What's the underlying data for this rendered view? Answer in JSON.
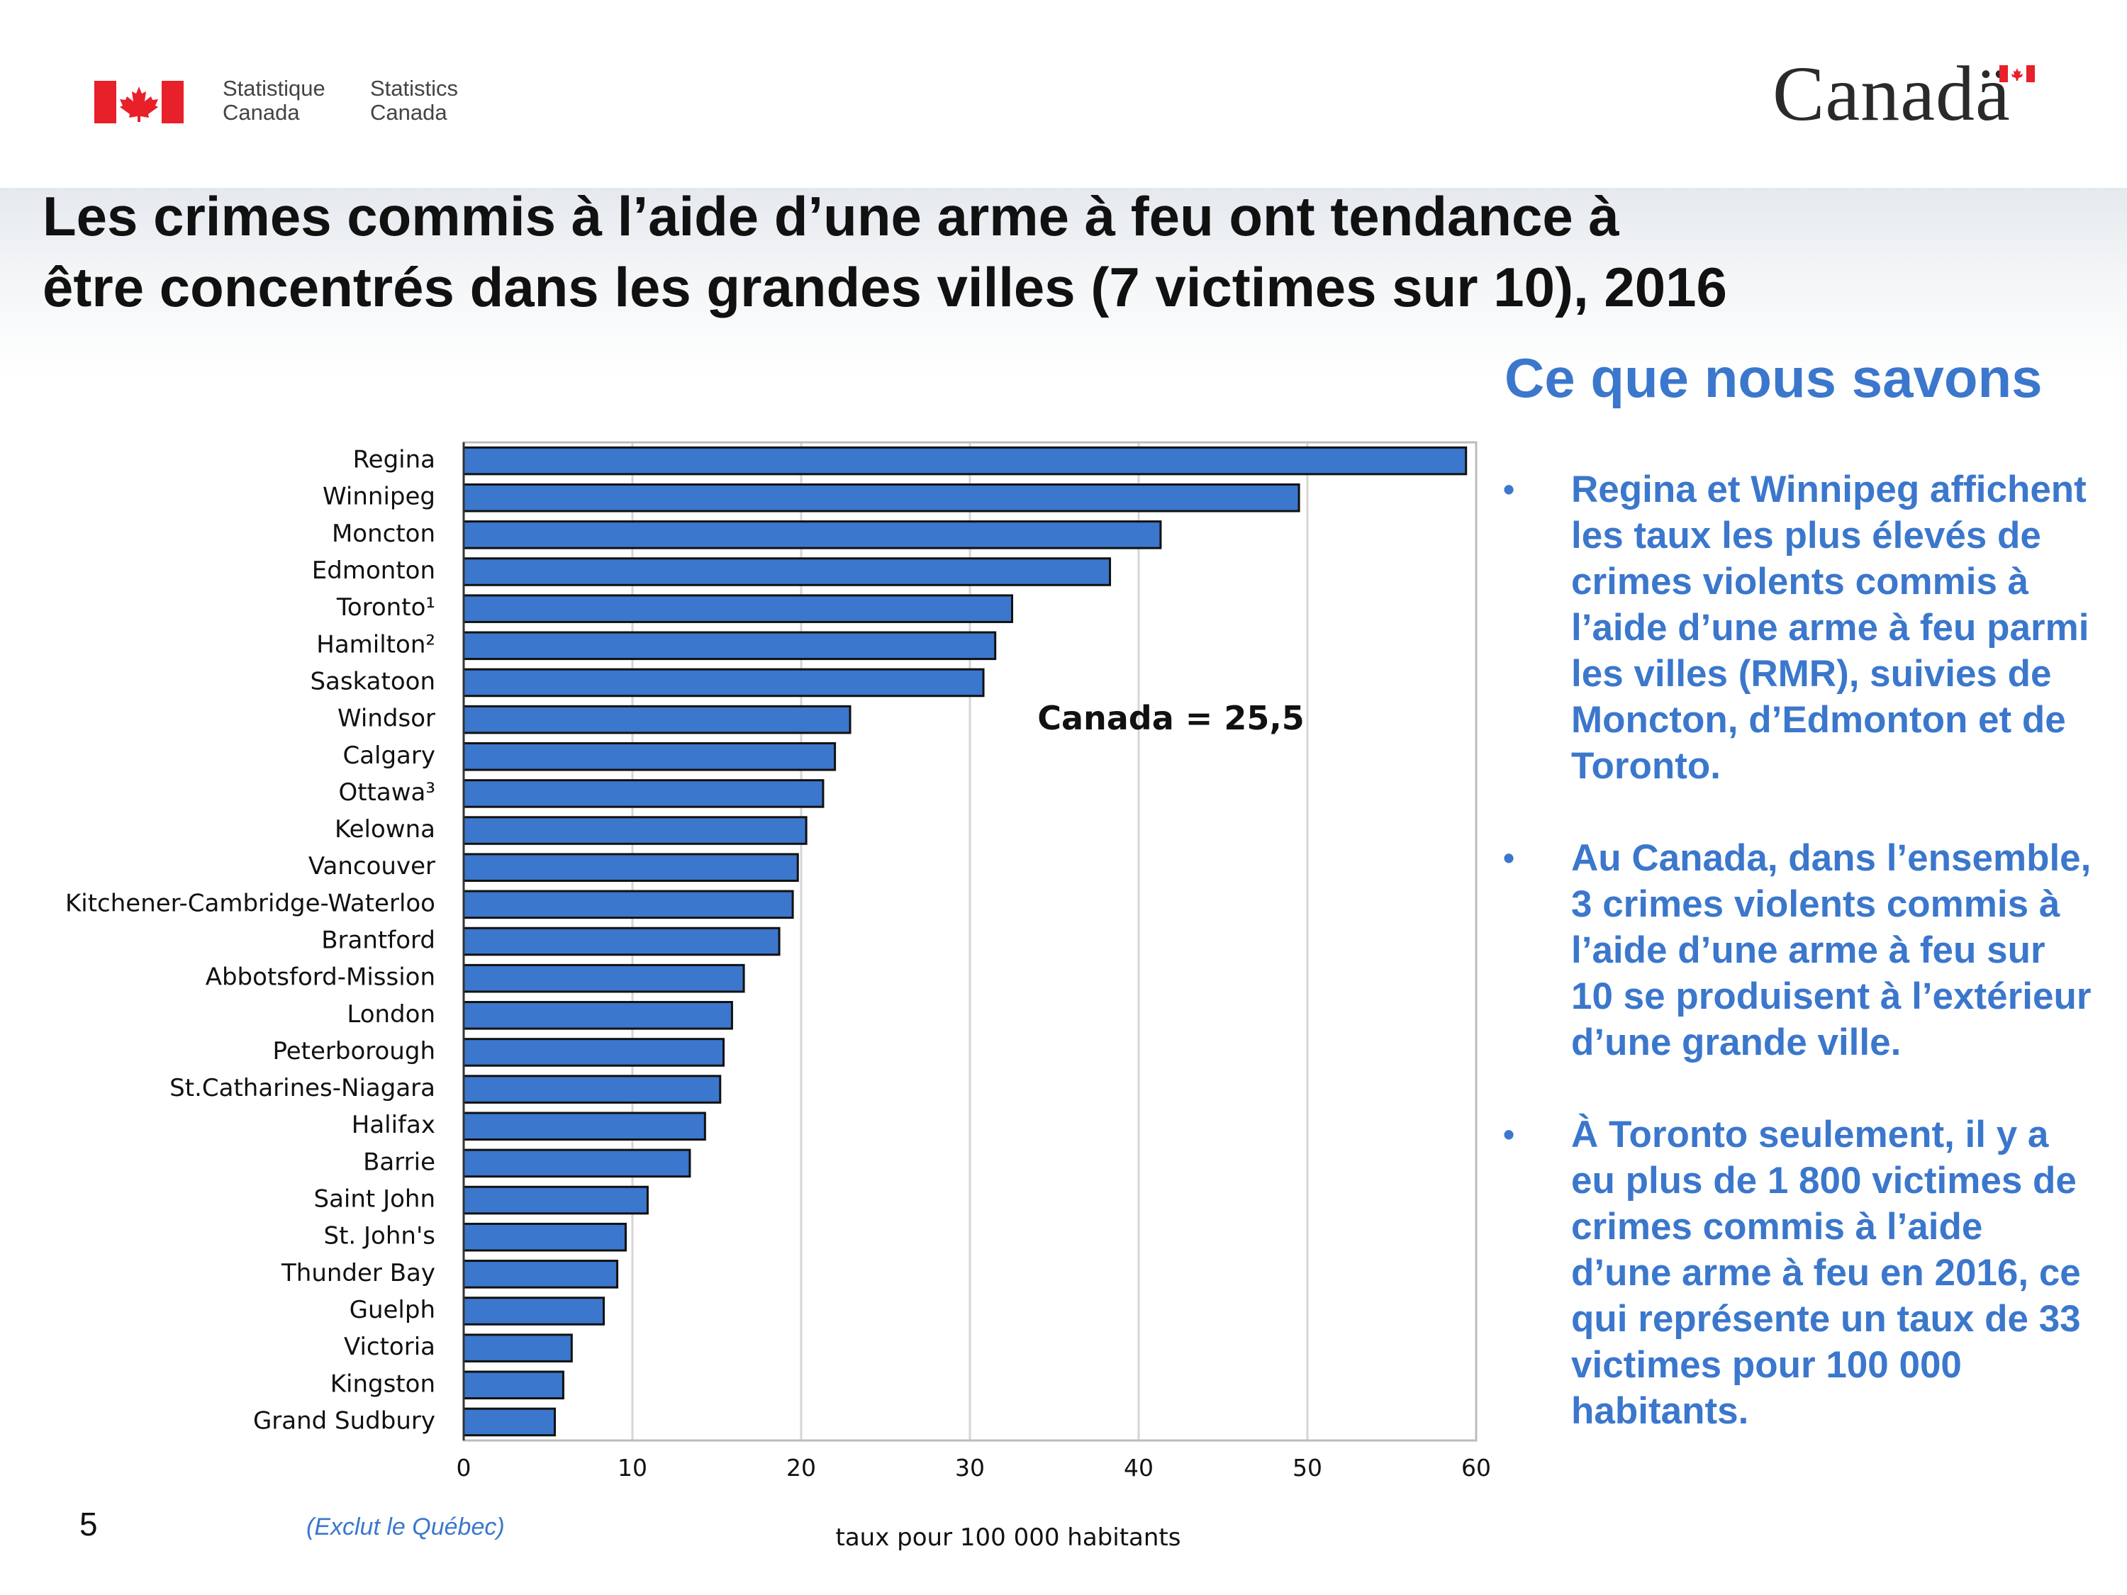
{
  "header": {
    "statcan_fr": [
      "Statistique",
      "Canada"
    ],
    "statcan_en": [
      "Statistics",
      "Canada"
    ],
    "wordmark": "Canadä",
    "flag_red": "#e8202a"
  },
  "slide": {
    "title_lines": [
      "Les crimes commis à l’aide d’une arme à feu ont tendance à",
      "être concentrés dans les grandes villes (7 victimes sur 10), 2016"
    ],
    "side_title": "Ce que nous savons",
    "bullet_marker": "•",
    "bullets": [
      "Regina et Winnipeg affichent les taux les plus élevés de crimes violents commis à l’aide d’une arme à feu parmi les villes (RMR), suivies de Moncton, d’Edmonton et de Toronto.",
      "Au Canada, dans l’ensemble, 3 crimes violents commis à l’aide d’une arme à feu sur 10 se produisent à l’extérieur d’une grande ville.",
      "À Toronto seulement, il y a eu plus de 1 800 victimes de crimes commis à l’aide d’une arme à feu en 2016, ce qui représente un taux de 33 victimes pour 100 000 habitants."
    ],
    "page_number": "5",
    "footnote": "(Exclut le Québec)",
    "accent_color": "#3b77cc"
  },
  "chart_data": {
    "type": "bar",
    "orientation": "horizontal",
    "categories": [
      "Regina",
      "Winnipeg",
      "Moncton",
      "Edmonton",
      "Toronto¹",
      "Hamilton²",
      "Saskatoon",
      "Windsor",
      "Calgary",
      "Ottawa³",
      "Kelowna",
      "Vancouver",
      "Kitchener-Cambridge-Waterloo",
      "Brantford",
      "Abbotsford-Mission",
      "London",
      "Peterborough",
      "St.Catharines-Niagara",
      "Halifax",
      "Barrie",
      "Saint John",
      "St. John's",
      "Thunder Bay",
      "Guelph",
      "Victoria",
      "Kingston",
      "Grand Sudbury"
    ],
    "values": [
      59.4,
      49.5,
      41.3,
      38.3,
      32.5,
      31.5,
      30.8,
      22.9,
      22.0,
      21.3,
      20.3,
      19.8,
      19.5,
      18.7,
      16.6,
      15.9,
      15.4,
      15.2,
      14.3,
      13.4,
      10.9,
      9.6,
      9.1,
      8.3,
      6.4,
      5.9,
      5.4
    ],
    "xlabel": "taux pour 100 000 habitants",
    "xlim": [
      0,
      60
    ],
    "xticks": [
      0,
      10,
      20,
      30,
      40,
      50,
      60
    ],
    "annotation": "Canada = 25,5",
    "bar_color": "#3b77cc",
    "grid": true
  }
}
